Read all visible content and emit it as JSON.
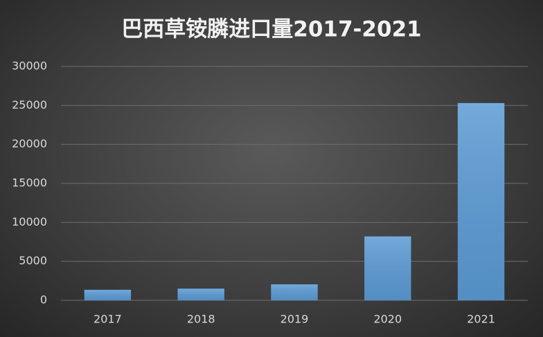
{
  "chart_data": {
    "type": "bar",
    "title": "巴西草铵膦进口量2017-2021",
    "categories": [
      "2017",
      "2018",
      "2019",
      "2020",
      "2021"
    ],
    "values": [
      1350,
      1500,
      2050,
      8200,
      25300
    ],
    "color": "#5b9bd5",
    "ylim": [
      0,
      30000
    ],
    "yticks": [
      0,
      5000,
      10000,
      15000,
      20000,
      25000,
      30000
    ],
    "grid": true
  }
}
